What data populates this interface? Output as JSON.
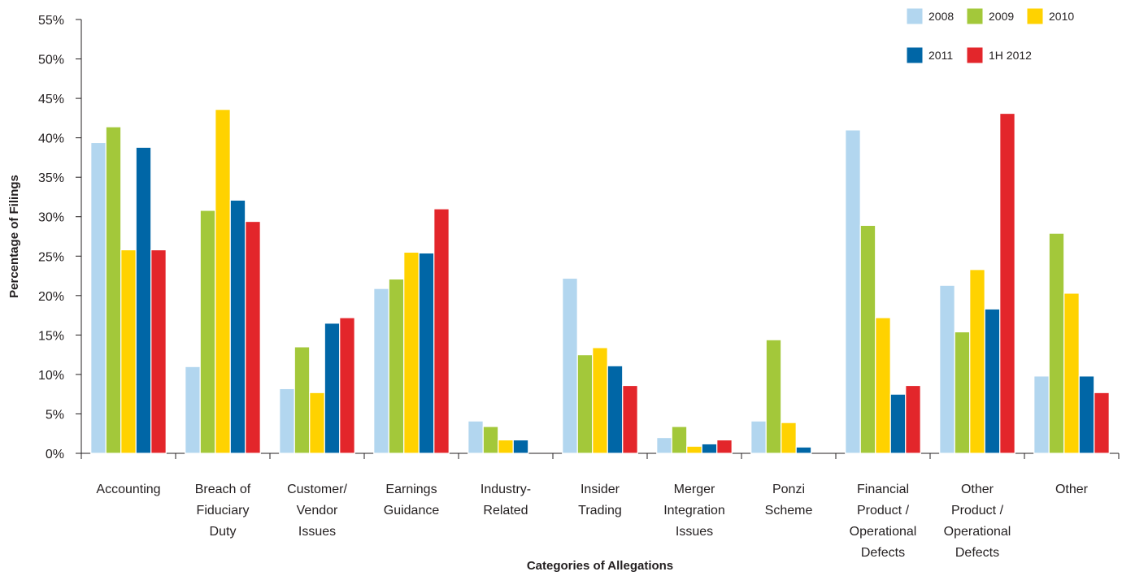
{
  "chart_data": {
    "type": "bar",
    "title": "",
    "xlabel": "Categories of Allegations",
    "ylabel": "Percentage of Filings",
    "ylim": [
      0,
      55
    ],
    "yticks": [
      "0%",
      "5%",
      "10%",
      "15%",
      "20%",
      "25%",
      "30%",
      "35%",
      "40%",
      "45%",
      "50%",
      "55%"
    ],
    "grid": false,
    "legend_position": "top-right",
    "categories": [
      [
        "Accounting"
      ],
      [
        "Breach of",
        "Fiduciary",
        "Duty"
      ],
      [
        "Customer/",
        "Vendor",
        "Issues"
      ],
      [
        "Earnings",
        "Guidance"
      ],
      [
        "Industry-",
        "Related"
      ],
      [
        "Insider",
        "Trading"
      ],
      [
        "Merger",
        "Integration",
        "Issues"
      ],
      [
        "Ponzi",
        "Scheme"
      ],
      [
        "Financial",
        "Product /",
        "Operational",
        "Defects"
      ],
      [
        "Other",
        "Product /",
        "Operational",
        "Defects"
      ],
      [
        "Other"
      ]
    ],
    "series": [
      {
        "name": "2008",
        "color": "#b2d6ef",
        "values": [
          39.4,
          11.0,
          8.2,
          20.9,
          4.1,
          22.2,
          2.0,
          4.1,
          41.0,
          21.3,
          9.8
        ]
      },
      {
        "name": "2009",
        "color": "#a3c83a",
        "values": [
          41.4,
          30.8,
          13.5,
          22.1,
          3.4,
          12.5,
          3.4,
          14.4,
          28.9,
          15.4,
          27.9
        ]
      },
      {
        "name": "2010",
        "color": "#ffd200",
        "values": [
          25.8,
          43.6,
          7.7,
          25.5,
          1.7,
          13.4,
          0.9,
          3.9,
          17.2,
          23.3,
          20.3
        ]
      },
      {
        "name": "2011",
        "color": "#0066a6",
        "values": [
          38.8,
          32.1,
          16.5,
          25.4,
          1.7,
          11.1,
          1.2,
          0.8,
          7.5,
          18.3,
          9.8
        ]
      },
      {
        "name": "1H 2012",
        "color": "#e3262b",
        "values": [
          25.8,
          29.4,
          17.2,
          31.0,
          0,
          8.6,
          1.7,
          0,
          8.6,
          43.1,
          7.7
        ]
      }
    ]
  }
}
